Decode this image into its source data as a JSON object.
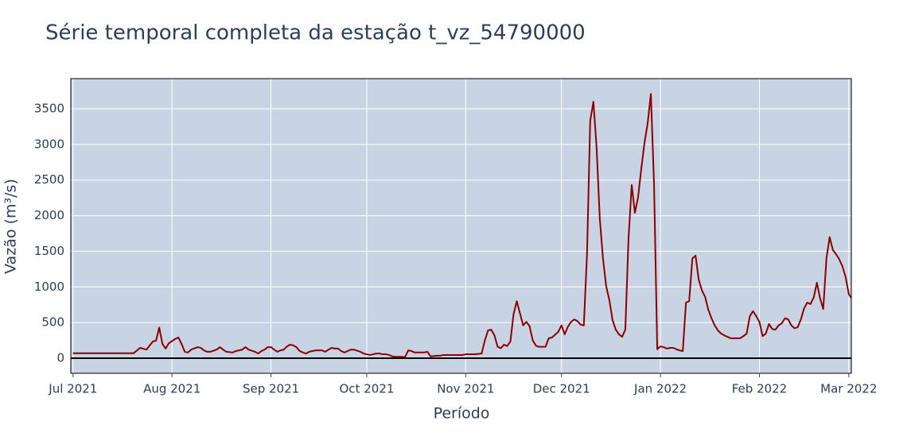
{
  "chart_data": {
    "type": "line",
    "title": "Série temporal completa da estação t_vz_54790000",
    "x_label": "Período",
    "y_label": "Vazão (m³/s)",
    "x": [
      0,
      19,
      21,
      23,
      25,
      26,
      27,
      28,
      29,
      30,
      32,
      33,
      34,
      35,
      36,
      37,
      39,
      40,
      41,
      42,
      43,
      45,
      46,
      47,
      48,
      50,
      51,
      53,
      54,
      55,
      57,
      58,
      59,
      60,
      61,
      62,
      63,
      64,
      65,
      66,
      67,
      68,
      69,
      70,
      71,
      72,
      73,
      74,
      76,
      77,
      78,
      79,
      80,
      81,
      82,
      83,
      84,
      85,
      86,
      87,
      88,
      90,
      91,
      92,
      93,
      94,
      95,
      96,
      97,
      98,
      99,
      100,
      101,
      102,
      103,
      104,
      105,
      106,
      107,
      109,
      110,
      111,
      112,
      114,
      115,
      116,
      118,
      120,
      122,
      123,
      126,
      128,
      129,
      130,
      131,
      132,
      133,
      134,
      135,
      136,
      137,
      138,
      139,
      140,
      141,
      142,
      143,
      144,
      145,
      146,
      148,
      149,
      150,
      151,
      152,
      153,
      154,
      155,
      156,
      157,
      158,
      159,
      160,
      161,
      162,
      163,
      164,
      165,
      166,
      167,
      168,
      169,
      170,
      171,
      172,
      173,
      174,
      175,
      176,
      177,
      178,
      179,
      180,
      181,
      182,
      183,
      184,
      185,
      186,
      187,
      188,
      189,
      190,
      191,
      192,
      193,
      194,
      195,
      196,
      197,
      198,
      199,
      200,
      201,
      202,
      203,
      204,
      205,
      206,
      207,
      209,
      210,
      211,
      212,
      213,
      214,
      215,
      216,
      217,
      218,
      219,
      220,
      221,
      222,
      223,
      224,
      225,
      226,
      227,
      228,
      229,
      230,
      231,
      232,
      233,
      234,
      235,
      236,
      237,
      238,
      239,
      240,
      241,
      242,
      243,
      243.7
    ],
    "series": [
      {
        "name": "t_vz_54790000",
        "color": "#8b0000",
        "values": [
          70,
          70,
          145,
          120,
          235,
          245,
          430,
          200,
          135,
          210,
          270,
          290,
          200,
          90,
          80,
          120,
          155,
          145,
          110,
          90,
          90,
          120,
          155,
          120,
          90,
          80,
          100,
          120,
          155,
          120,
          90,
          65,
          100,
          120,
          155,
          155,
          120,
          90,
          110,
          120,
          165,
          190,
          180,
          155,
          100,
          80,
          65,
          90,
          110,
          110,
          110,
          90,
          120,
          145,
          135,
          135,
          100,
          80,
          100,
          120,
          120,
          90,
          65,
          55,
          45,
          55,
          65,
          65,
          55,
          55,
          45,
          25,
          20,
          20,
          20,
          15,
          110,
          100,
          80,
          80,
          80,
          90,
          25,
          35,
          35,
          45,
          45,
          45,
          45,
          55,
          55,
          65,
          250,
          390,
          400,
          320,
          160,
          140,
          190,
          170,
          235,
          620,
          800,
          630,
          460,
          510,
          450,
          250,
          175,
          160,
          160,
          280,
          290,
          330,
          370,
          460,
          335,
          440,
          510,
          545,
          520,
          470,
          460,
          1460,
          3330,
          3600,
          2960,
          1960,
          1400,
          1010,
          815,
          535,
          400,
          335,
          300,
          400,
          1680,
          2430,
          2040,
          2260,
          2660,
          3020,
          3300,
          3710,
          2440,
          125,
          165,
          155,
          135,
          145,
          145,
          125,
          110,
          100,
          780,
          800,
          1400,
          1440,
          1100,
          950,
          860,
          680,
          560,
          460,
          390,
          345,
          320,
          300,
          280,
          280,
          280,
          310,
          345,
          590,
          660,
          590,
          510,
          310,
          345,
          480,
          410,
          400,
          460,
          490,
          560,
          545,
          460,
          420,
          435,
          545,
          700,
          780,
          760,
          850,
          1060,
          840,
          690,
          1400,
          1700,
          1520,
          1460,
          1390,
          1290,
          1140,
          900,
          850
        ]
      }
    ],
    "xlim": [
      -0.7,
      243.8
    ],
    "xticks": [
      {
        "value": 0,
        "label": "Jul 2021"
      },
      {
        "value": 31,
        "label": "Aug 2021"
      },
      {
        "value": 62,
        "label": "Sep 2021"
      },
      {
        "value": 92,
        "label": "Oct 2021"
      },
      {
        "value": 123,
        "label": "Nov 2021"
      },
      {
        "value": 153,
        "label": "Dec 2021"
      },
      {
        "value": 184,
        "label": "Jan 2022"
      },
      {
        "value": 215,
        "label": "Feb 2022"
      },
      {
        "value": 243,
        "label": "Mar 2022"
      }
    ],
    "ylim": [
      -212,
      3924
    ],
    "yticks": [
      0,
      500,
      1000,
      1500,
      2000,
      2500,
      3000,
      3500
    ],
    "grid": true,
    "zeroline": true,
    "plot_background": "#c8d4e3"
  }
}
